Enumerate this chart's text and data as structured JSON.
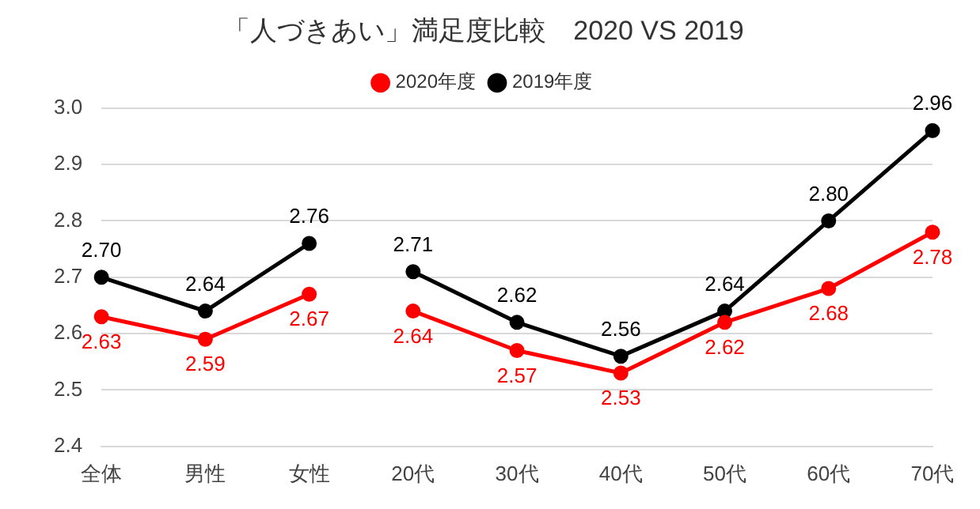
{
  "chart_data": {
    "type": "line",
    "title": "「人づきあい」満足度比較　2020 VS 2019",
    "categories": [
      "全体",
      "男性",
      "女性",
      "20代",
      "30代",
      "40代",
      "50代",
      "60代",
      "70代"
    ],
    "series": [
      {
        "name": "2020年度",
        "color": "#ff0000",
        "values": [
          2.63,
          2.59,
          2.67,
          null,
          null,
          null,
          null,
          null,
          null
        ],
        "value_labels": [
          "2.63",
          "2.59",
          "2.67",
          null,
          null,
          null,
          null,
          null,
          null
        ]
      },
      {
        "color": "#ff0000",
        "values": [
          null,
          null,
          null,
          2.64,
          2.57,
          2.53,
          2.62,
          2.68,
          2.78
        ],
        "value_labels": [
          null,
          null,
          null,
          "2.64",
          "2.57",
          "2.53",
          "2.62",
          "2.68",
          "2.78"
        ]
      },
      {
        "name": "2019年度",
        "color": "#000000",
        "values": [
          2.7,
          2.64,
          2.76,
          null,
          null,
          null,
          null,
          null,
          null
        ],
        "value_labels": [
          "2.70",
          "2.64",
          "2.76",
          null,
          null,
          null,
          null,
          null,
          null
        ]
      },
      {
        "color": "#000000",
        "values": [
          null,
          null,
          null,
          2.71,
          2.62,
          2.56,
          2.64,
          2.8,
          2.96
        ],
        "value_labels": [
          null,
          null,
          null,
          "2.71",
          "2.62",
          "2.56",
          "2.64",
          "2.80",
          "2.96"
        ]
      }
    ],
    "ylim": [
      2.4,
      3.0
    ],
    "yticks": [
      2.4,
      2.5,
      2.6,
      2.7,
      2.8,
      2.9,
      {
        "value": 3.0,
        "label": "3.0"
      }
    ],
    "grid": "y",
    "legend": "top",
    "marker": "circle",
    "line_style": "solid"
  }
}
